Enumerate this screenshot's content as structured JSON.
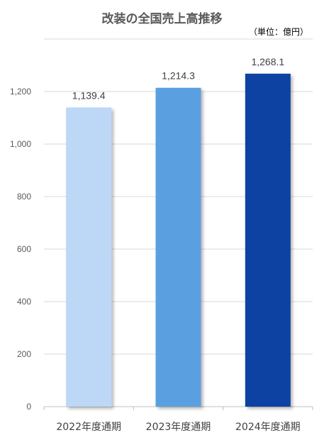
{
  "title": "改装の全国売上高推移",
  "unit_label": "（単位：億円）",
  "chart_data": {
    "type": "bar",
    "title": "改装の全国売上高推移",
    "categories": [
      "2022年度通期",
      "2023年度通期",
      "2024年度通期"
    ],
    "values": [
      1139.4,
      1214.3,
      1268.1
    ],
    "value_labels": [
      "1,139.4",
      "1,214.3",
      "1,268.1"
    ],
    "bar_colors": [
      "#bdd7f7",
      "#5aa0e0",
      "#0b43a3"
    ],
    "xlabel": "",
    "ylabel": "",
    "ylim": [
      0,
      1200
    ],
    "y_ticks": [
      0,
      200,
      400,
      600,
      800,
      1000,
      1200
    ],
    "y_tick_labels": [
      "0",
      "200",
      "400",
      "600",
      "800",
      "1,000",
      "1,200"
    ],
    "grid": true,
    "legend": "none"
  }
}
